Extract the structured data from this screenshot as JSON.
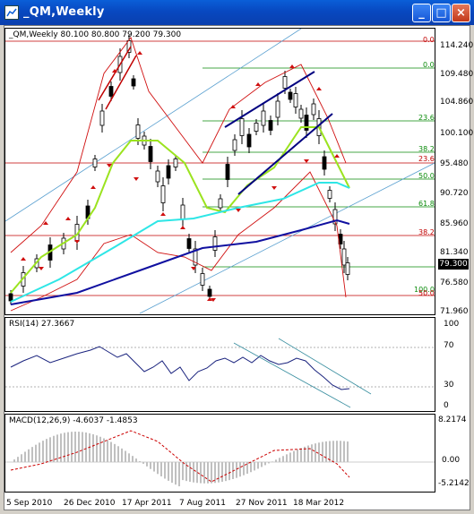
{
  "window": {
    "title": "_QM,Weekly",
    "buttons": {
      "minimize": "_",
      "maximize": "□",
      "close": "×"
    }
  },
  "main_chart": {
    "header": "_QM,Weekly  80.100 80.800 79.200 79.300",
    "current_price": "79.300",
    "price_scale": [
      "114.240",
      "109.480",
      "104.860",
      "100.100",
      "95.480",
      "90.720",
      "85.960",
      "81.340",
      "76.580",
      "71.960"
    ],
    "fibo_levels_left": [
      {
        "text": "0.0",
        "color": "red"
      },
      {
        "text": "0.0",
        "color": "green"
      },
      {
        "text": "23.6",
        "color": "green"
      },
      {
        "text": "38.2",
        "color": "green"
      },
      {
        "text": "23.6",
        "color": "red"
      },
      {
        "text": "50.0",
        "color": "green"
      },
      {
        "text": "61.8",
        "color": "green"
      },
      {
        "text": "38.2",
        "color": "red"
      },
      {
        "text": "100.0",
        "color": "green"
      },
      {
        "text": "50.0",
        "color": "red"
      }
    ]
  },
  "rsi": {
    "header": "RSI(14) 27.3667",
    "levels": [
      "70",
      "30",
      "0"
    ],
    "scale_top": "100"
  },
  "macd": {
    "header": "MACD(12,26,9) -4.6037 -1.4853",
    "scale": [
      "8.2174",
      "0.00",
      "-5.2142"
    ]
  },
  "x_axis": [
    "5 Sep 2010",
    "26 Dec 2010",
    "17 Apr 2011",
    "7 Aug 2011",
    "27 Nov 2011",
    "18 Mar 2012"
  ],
  "colors": {
    "title_bar": "#0848c0",
    "fibo_red": "#c00000",
    "fibo_green": "#0a8a0a",
    "ma_fast": "#9be31f",
    "ma_mid": "#2ee6e6",
    "ma_slow": "#1010a0",
    "bollinger": "#d01010",
    "trendline": "#000080",
    "rsi_line": "#1a237e",
    "macd_signal": "#cc0000"
  }
}
